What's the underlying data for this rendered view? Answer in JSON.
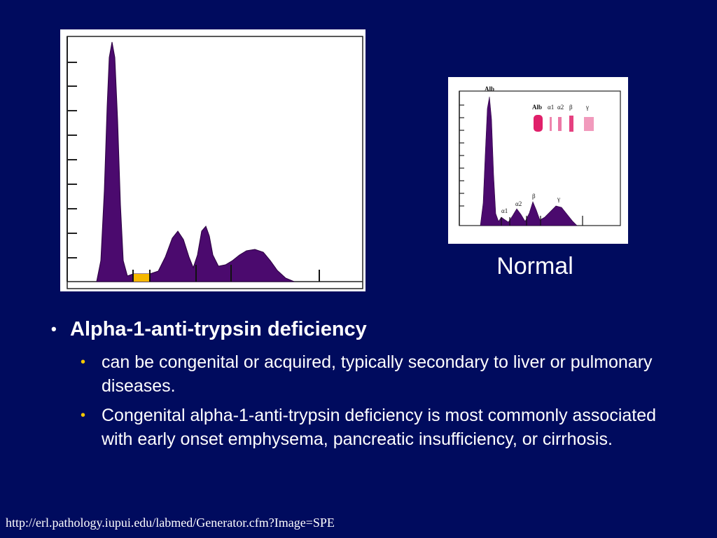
{
  "caption": "Normal",
  "bullets": {
    "main": "Alpha-1-anti-trypsin deficiency",
    "sub": [
      "can be congenital or acquired, typically secondary to liver or pulmonary diseases.",
      "Congenital alpha-1-anti-trypsin deficiency is most commonly associated with early onset emphysema, pancreatic insufficiency, or cirrhosis."
    ]
  },
  "footer": "http://erl.pathology.iupui.edu/labmed/Generator.cfm?Image=SPE",
  "normal_chart": {
    "peak_labels": [
      "Alb",
      "α1",
      "α2",
      "β",
      "γ"
    ],
    "strip_labels": [
      "Alb",
      "α1",
      "α2",
      "β",
      "γ"
    ]
  },
  "colors": {
    "background": "#000b5e",
    "trace_fill": "#4b0a6e",
    "deficiency_marker": "#f5b800",
    "bullet_sub": "#f5c800",
    "strip": "#e0206a"
  }
}
